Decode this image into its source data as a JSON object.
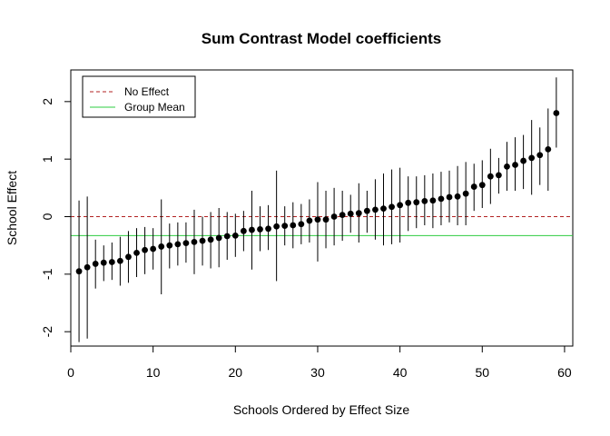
{
  "chart_data": {
    "type": "scatter",
    "title": "Sum Contrast Model coefficients",
    "xlabel": "Schools Ordered by Effect Size",
    "ylabel": "School Effect",
    "xlim": [
      0,
      61
    ],
    "ylim": [
      -2.25,
      2.55
    ],
    "xticks": [
      0,
      10,
      20,
      30,
      40,
      50,
      60
    ],
    "yticks": [
      -2,
      -1,
      0,
      1,
      2
    ],
    "legend": {
      "position": "top-left",
      "entries": [
        {
          "label": "No Effect",
          "color": "#b22222",
          "style": "dashed"
        },
        {
          "label": "Group Mean",
          "color": "#2ecc40",
          "style": "solid"
        }
      ]
    },
    "reference_lines": [
      {
        "name": "No Effect",
        "y": 0,
        "color": "#b22222",
        "style": "dashed"
      },
      {
        "name": "Group Mean",
        "y": -0.33,
        "color": "#2ecc40",
        "style": "solid"
      }
    ],
    "points": [
      {
        "x": 1,
        "y": -0.95,
        "lo": -2.18,
        "hi": 0.28
      },
      {
        "x": 2,
        "y": -0.88,
        "lo": -2.12,
        "hi": 0.35
      },
      {
        "x": 3,
        "y": -0.82,
        "lo": -1.25,
        "hi": -0.4
      },
      {
        "x": 4,
        "y": -0.8,
        "lo": -1.12,
        "hi": -0.5
      },
      {
        "x": 5,
        "y": -0.79,
        "lo": -1.1,
        "hi": -0.45
      },
      {
        "x": 6,
        "y": -0.77,
        "lo": -1.2,
        "hi": -0.35
      },
      {
        "x": 7,
        "y": -0.7,
        "lo": -1.15,
        "hi": -0.25
      },
      {
        "x": 8,
        "y": -0.63,
        "lo": -1.05,
        "hi": -0.2
      },
      {
        "x": 9,
        "y": -0.58,
        "lo": -1.0,
        "hi": -0.18
      },
      {
        "x": 10,
        "y": -0.56,
        "lo": -0.92,
        "hi": -0.2
      },
      {
        "x": 11,
        "y": -0.52,
        "lo": -1.35,
        "hi": 0.3
      },
      {
        "x": 12,
        "y": -0.5,
        "lo": -0.9,
        "hi": -0.12
      },
      {
        "x": 13,
        "y": -0.48,
        "lo": -0.85,
        "hi": -0.1
      },
      {
        "x": 14,
        "y": -0.46,
        "lo": -0.8,
        "hi": -0.1
      },
      {
        "x": 15,
        "y": -0.44,
        "lo": -1.0,
        "hi": 0.12
      },
      {
        "x": 16,
        "y": -0.42,
        "lo": -0.85,
        "hi": 0.0
      },
      {
        "x": 17,
        "y": -0.4,
        "lo": -0.9,
        "hi": 0.08
      },
      {
        "x": 18,
        "y": -0.37,
        "lo": -0.88,
        "hi": 0.15
      },
      {
        "x": 19,
        "y": -0.34,
        "lo": -0.75,
        "hi": 0.08
      },
      {
        "x": 20,
        "y": -0.33,
        "lo": -0.7,
        "hi": 0.05
      },
      {
        "x": 21,
        "y": -0.25,
        "lo": -0.6,
        "hi": 0.1
      },
      {
        "x": 22,
        "y": -0.23,
        "lo": -0.92,
        "hi": 0.45
      },
      {
        "x": 23,
        "y": -0.22,
        "lo": -0.6,
        "hi": 0.18
      },
      {
        "x": 24,
        "y": -0.21,
        "lo": -0.58,
        "hi": 0.2
      },
      {
        "x": 25,
        "y": -0.17,
        "lo": -1.12,
        "hi": 0.8
      },
      {
        "x": 26,
        "y": -0.16,
        "lo": -0.5,
        "hi": 0.18
      },
      {
        "x": 27,
        "y": -0.15,
        "lo": -0.55,
        "hi": 0.25
      },
      {
        "x": 28,
        "y": -0.13,
        "lo": -0.48,
        "hi": 0.22
      },
      {
        "x": 29,
        "y": -0.07,
        "lo": -0.45,
        "hi": 0.3
      },
      {
        "x": 30,
        "y": -0.05,
        "lo": -0.78,
        "hi": 0.6
      },
      {
        "x": 31,
        "y": -0.05,
        "lo": -0.55,
        "hi": 0.45
      },
      {
        "x": 32,
        "y": 0.0,
        "lo": -0.5,
        "hi": 0.5
      },
      {
        "x": 33,
        "y": 0.03,
        "lo": -0.42,
        "hi": 0.45
      },
      {
        "x": 34,
        "y": 0.05,
        "lo": -0.28,
        "hi": 0.38
      },
      {
        "x": 35,
        "y": 0.06,
        "lo": -0.45,
        "hi": 0.58
      },
      {
        "x": 36,
        "y": 0.1,
        "lo": -0.28,
        "hi": 0.45
      },
      {
        "x": 37,
        "y": 0.12,
        "lo": -0.4,
        "hi": 0.65
      },
      {
        "x": 38,
        "y": 0.14,
        "lo": -0.5,
        "hi": 0.75
      },
      {
        "x": 39,
        "y": 0.17,
        "lo": -0.48,
        "hi": 0.82
      },
      {
        "x": 40,
        "y": 0.2,
        "lo": -0.45,
        "hi": 0.85
      },
      {
        "x": 41,
        "y": 0.24,
        "lo": -0.25,
        "hi": 0.7
      },
      {
        "x": 42,
        "y": 0.25,
        "lo": -0.2,
        "hi": 0.7
      },
      {
        "x": 43,
        "y": 0.27,
        "lo": -0.15,
        "hi": 0.72
      },
      {
        "x": 44,
        "y": 0.28,
        "lo": -0.2,
        "hi": 0.75
      },
      {
        "x": 45,
        "y": 0.31,
        "lo": -0.15,
        "hi": 0.78
      },
      {
        "x": 46,
        "y": 0.34,
        "lo": -0.1,
        "hi": 0.8
      },
      {
        "x": 47,
        "y": 0.35,
        "lo": -0.15,
        "hi": 0.88
      },
      {
        "x": 48,
        "y": 0.4,
        "lo": -0.15,
        "hi": 0.95
      },
      {
        "x": 49,
        "y": 0.52,
        "lo": 0.1,
        "hi": 0.92
      },
      {
        "x": 50,
        "y": 0.55,
        "lo": 0.15,
        "hi": 0.98
      },
      {
        "x": 51,
        "y": 0.7,
        "lo": 0.22,
        "hi": 1.18
      },
      {
        "x": 52,
        "y": 0.72,
        "lo": 0.4,
        "hi": 1.02
      },
      {
        "x": 53,
        "y": 0.87,
        "lo": 0.45,
        "hi": 1.3
      },
      {
        "x": 54,
        "y": 0.9,
        "lo": 0.45,
        "hi": 1.38
      },
      {
        "x": 55,
        "y": 0.97,
        "lo": 0.48,
        "hi": 1.42
      },
      {
        "x": 56,
        "y": 1.02,
        "lo": 0.38,
        "hi": 1.68
      },
      {
        "x": 57,
        "y": 1.07,
        "lo": 0.55,
        "hi": 1.55
      },
      {
        "x": 58,
        "y": 1.17,
        "lo": 0.45,
        "hi": 1.88
      },
      {
        "x": 59,
        "y": 1.8,
        "lo": 1.2,
        "hi": 2.42
      }
    ]
  }
}
